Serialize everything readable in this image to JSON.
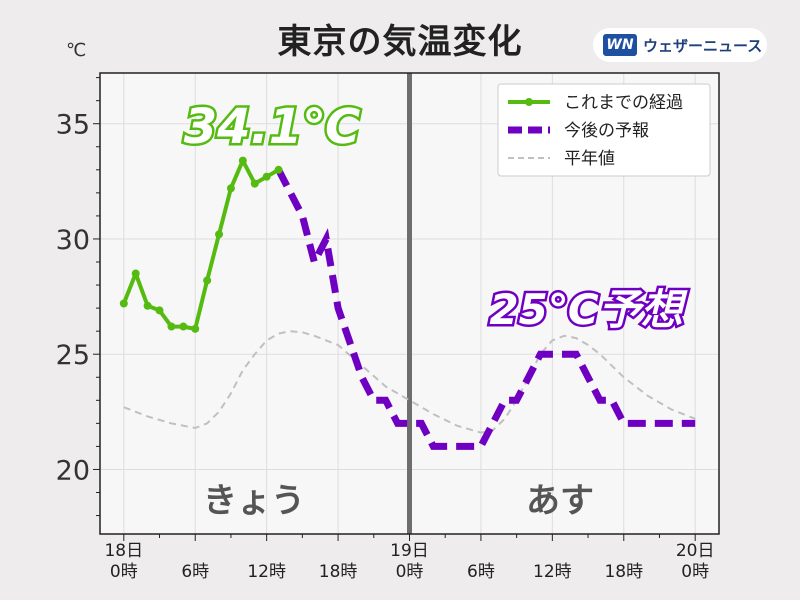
{
  "page": {
    "title": "東京の気温変化",
    "unit": "℃",
    "brand": "ウェザーニュース",
    "brand_logo": "WN"
  },
  "annotations": {
    "max_today": "34.1℃",
    "max_tomorrow": "25℃予想",
    "day_today": "きょう",
    "day_tomorrow": "あす"
  },
  "colors": {
    "observed": "#55bb11",
    "forecast": "#6f00c2",
    "normal": "#c0c0c0",
    "divider": "#6e6e6e",
    "plot_bg": "#f8f7f8",
    "grid": "#dddddd",
    "day_label": "#555555"
  },
  "chart_data": {
    "type": "line",
    "xlim": [
      -2,
      50
    ],
    "ylim": [
      17.2,
      37.2
    ],
    "yticks": [
      20,
      25,
      30,
      35
    ],
    "x_major_ticks": [
      {
        "x": 0,
        "lines": [
          "18日",
          "0時"
        ]
      },
      {
        "x": 6,
        "lines": [
          "6時"
        ]
      },
      {
        "x": 12,
        "lines": [
          "12時"
        ]
      },
      {
        "x": 18,
        "lines": [
          "18時"
        ]
      },
      {
        "x": 24,
        "lines": [
          "19日",
          "0時"
        ]
      },
      {
        "x": 30,
        "lines": [
          "6時"
        ]
      },
      {
        "x": 36,
        "lines": [
          "12時"
        ]
      },
      {
        "x": 42,
        "lines": [
          "18時"
        ]
      },
      {
        "x": 48,
        "lines": [
          "20日",
          "0時"
        ]
      }
    ],
    "day_divider_x": 24,
    "legend_position": "top-right",
    "grid": true,
    "series": [
      {
        "name": "これまでの経過",
        "style": "solid-markers",
        "x": [
          0,
          1,
          2,
          3,
          4,
          5,
          6,
          7,
          8,
          9,
          10,
          11,
          12,
          13
        ],
        "y": [
          27.2,
          28.5,
          27.1,
          26.9,
          26.2,
          26.2,
          26.1,
          28.2,
          30.2,
          32.2,
          33.4,
          32.4,
          32.7,
          33.0
        ]
      },
      {
        "name": "今後の予報",
        "style": "thick-dashed",
        "x": [
          13,
          14,
          15,
          16,
          17,
          18,
          19,
          20,
          21,
          22,
          23,
          24,
          25,
          26,
          27,
          28,
          29,
          30,
          31,
          32,
          33,
          34,
          35,
          36,
          37,
          38,
          39,
          40,
          41,
          42,
          43,
          44,
          45,
          46,
          47,
          48
        ],
        "y": [
          33.0,
          32.0,
          31.0,
          29.0,
          30.0,
          27.0,
          25.5,
          24.0,
          23.0,
          23.0,
          22.0,
          22.0,
          22.0,
          21.0,
          21.0,
          21.0,
          21.0,
          21.0,
          22.0,
          23.0,
          23.0,
          24.0,
          25.0,
          25.0,
          25.0,
          25.0,
          24.0,
          23.0,
          23.0,
          22.0,
          22.0,
          22.0,
          22.0,
          22.0,
          22.0,
          22.0
        ]
      },
      {
        "name": "平年値",
        "style": "thin-dashed",
        "x": [
          0,
          2,
          4,
          6,
          7,
          8,
          9,
          10,
          11,
          12,
          13,
          14,
          15,
          16,
          17,
          18,
          20,
          22,
          24,
          26,
          28,
          30,
          31,
          32,
          33,
          34,
          35,
          36,
          37,
          38,
          39,
          40,
          42,
          44,
          46,
          48
        ],
        "y": [
          22.7,
          22.3,
          22.0,
          21.8,
          22.0,
          22.5,
          23.3,
          24.3,
          25.0,
          25.6,
          25.9,
          26.0,
          25.95,
          25.8,
          25.6,
          25.4,
          24.5,
          23.6,
          23.0,
          22.4,
          21.9,
          21.6,
          21.7,
          22.2,
          23.0,
          24.0,
          25.0,
          25.6,
          25.8,
          25.7,
          25.4,
          25.0,
          24.0,
          23.2,
          22.6,
          22.2
        ]
      }
    ]
  }
}
